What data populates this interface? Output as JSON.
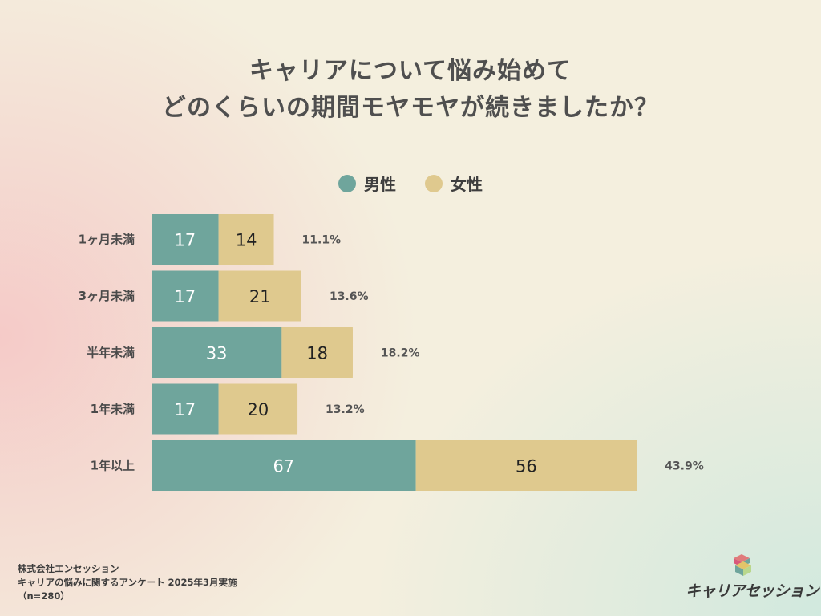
{
  "title_lines": [
    "キャリアについて悩み始めて",
    "どのくらいの期間モヤモヤが続きましたか？"
  ],
  "legend": [
    {
      "label": "男性",
      "color": "#6fa59c"
    },
    {
      "label": "女性",
      "color": "#dfc98e"
    }
  ],
  "chart_data": {
    "type": "bar",
    "orientation": "horizontal",
    "stacked": true,
    "categories": [
      "1ヶ月未満",
      "3ヶ月未満",
      "半年未満",
      "1年未満",
      "1年以上"
    ],
    "series": [
      {
        "name": "男性",
        "color": "#6fa59c",
        "values": [
          17,
          17,
          33,
          17,
          67
        ]
      },
      {
        "name": "女性",
        "color": "#dfc98e",
        "values": [
          14,
          21,
          18,
          20,
          56
        ]
      }
    ],
    "percent_labels": [
      "11.1%",
      "13.6%",
      "18.2%",
      "13.2%",
      "43.9%"
    ],
    "grid": false,
    "legend_position": "top-center"
  },
  "footer": {
    "company": "株式会社エンセッション",
    "survey": "キャリアの悩みに関するアンケート 2025年3月実施",
    "sample": "（n=280）"
  },
  "logo": {
    "text": "キャリアセッション"
  }
}
